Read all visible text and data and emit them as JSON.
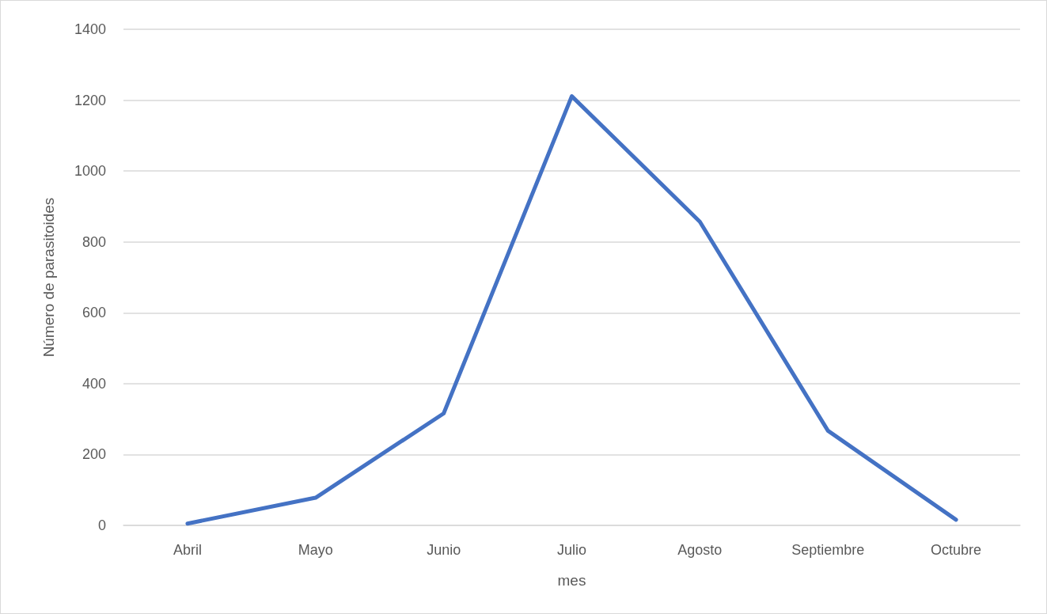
{
  "chart_data": {
    "type": "line",
    "xlabel": "mes",
    "ylabel": "Número de parasitoides",
    "categories": [
      "Abril",
      "Mayo",
      "Junio",
      "Julio",
      "Agosto",
      "Septiembre",
      "Octubre"
    ],
    "series": [
      {
        "color": "#4472c4",
        "values": [
          5,
          78,
          316,
          1211,
          857,
          267,
          16
        ]
      }
    ],
    "ylim": [
      0,
      1400
    ],
    "yticks": [
      0,
      200,
      400,
      600,
      800,
      1000,
      1200,
      1400
    ],
    "grid": "y",
    "marker": "none",
    "line_style": "solid"
  }
}
